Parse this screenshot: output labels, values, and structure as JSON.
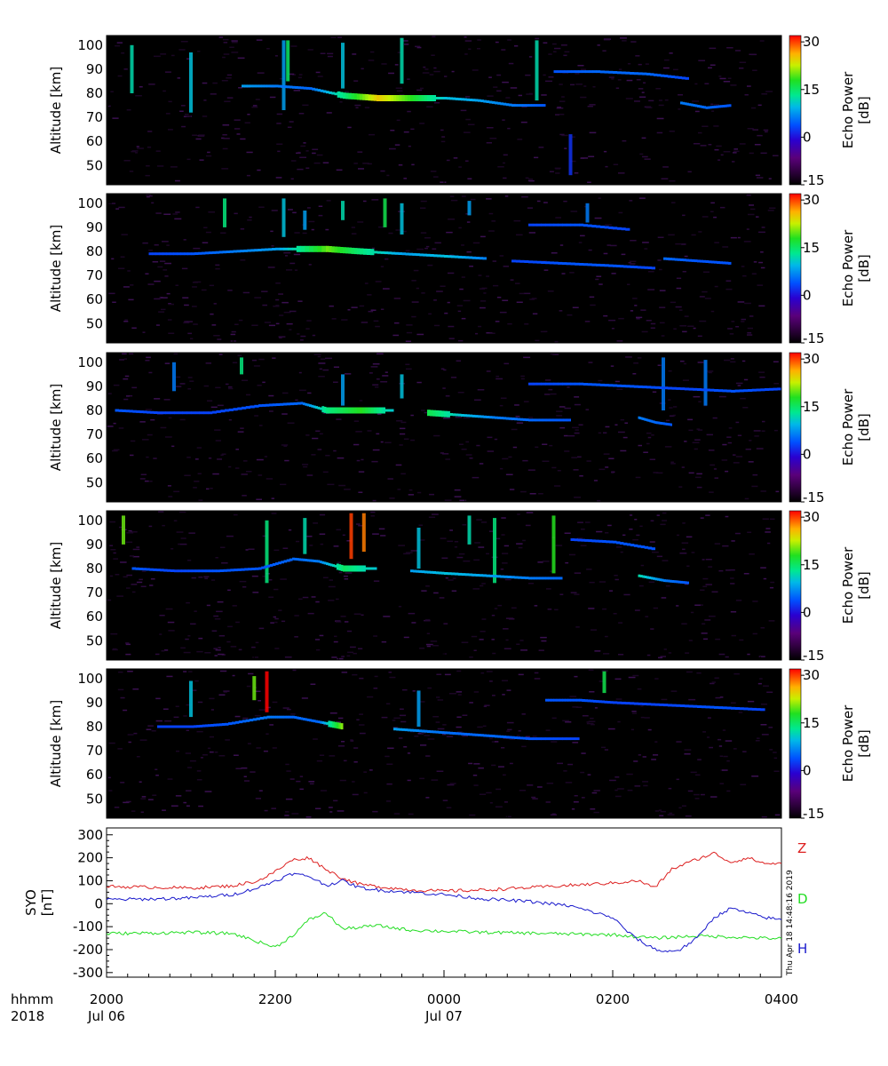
{
  "figure": {
    "timestamp": "Thu Apr 18 14:48:16 2019"
  },
  "colors": {
    "background": "#000000",
    "z_color": "#dd2020",
    "d_color": "#22dd22",
    "h_color": "#1a1acc"
  },
  "echo_panels": {
    "ylabel": "Altitude [km]",
    "yticks": [
      50,
      60,
      70,
      80,
      90,
      100
    ],
    "ylim": [
      42,
      104
    ],
    "colorbar_label_line1": "Echo Power",
    "colorbar_label_line2": "[dB]",
    "colorbar_ticks": [
      -15,
      0,
      15,
      30
    ],
    "colorbar_range": [
      -15,
      32
    ],
    "panel_count": 5
  },
  "mag_panel": {
    "ylabel_line1": "SYO",
    "ylabel_line2": "[nT]",
    "yticks": [
      -300,
      -200,
      -100,
      0,
      100,
      200,
      300
    ],
    "ylim": [
      -320,
      330
    ],
    "legend": [
      "Z",
      "D",
      "H"
    ]
  },
  "xaxis": {
    "hhmm_label": "hhmm",
    "year_label": "2018",
    "ticks": [
      {
        "label": "2000",
        "date": "Jul 06"
      },
      {
        "label": "2200",
        "date": ""
      },
      {
        "label": "0000",
        "date": "Jul 07"
      },
      {
        "label": "0200",
        "date": ""
      },
      {
        "label": "0400",
        "date": ""
      }
    ]
  },
  "chart_data": [
    {
      "type": "heatmap",
      "panel": 1,
      "xlabel": "",
      "ylabel": "Altitude [km]",
      "x_range_hours": [
        20,
        28
      ],
      "ylim": [
        42,
        104
      ],
      "colorbar": "Echo Power [dB]",
      "zlim": [
        -15,
        32
      ],
      "echo_layers": [
        {
          "t": [
            21.6,
            22.0,
            22.4,
            22.8,
            23.2,
            23.6,
            24.0,
            24.4,
            24.8,
            25.2
          ],
          "alt": [
            83,
            83,
            82,
            79,
            78,
            78,
            78,
            77,
            75,
            75
          ],
          "db": [
            8,
            6,
            5,
            14,
            25,
            18,
            10,
            8,
            6,
            4
          ]
        },
        {
          "t": [
            25.3,
            25.8,
            26.4,
            26.9
          ],
          "alt": [
            89,
            89,
            88,
            86
          ],
          "db": [
            4,
            5,
            5,
            3
          ]
        },
        {
          "t": [
            26.8,
            27.1,
            27.4
          ],
          "alt": [
            76,
            74,
            75
          ],
          "db": [
            6,
            5,
            4
          ]
        }
      ],
      "columns": [
        {
          "t": 20.3,
          "top": 100,
          "bottom": 80,
          "db": 12
        },
        {
          "t": 21.0,
          "top": 97,
          "bottom": 72,
          "db": 10
        },
        {
          "t": 22.1,
          "top": 102,
          "bottom": 73,
          "db": 8
        },
        {
          "t": 22.15,
          "top": 102,
          "bottom": 85,
          "db": 15
        },
        {
          "t": 22.8,
          "top": 101,
          "bottom": 82,
          "db": 10
        },
        {
          "t": 23.5,
          "top": 103,
          "bottom": 84,
          "db": 12
        },
        {
          "t": 25.1,
          "top": 102,
          "bottom": 77,
          "db": 12
        },
        {
          "t": 25.5,
          "top": 63,
          "bottom": 46,
          "db": 2
        }
      ]
    },
    {
      "type": "heatmap",
      "panel": 2,
      "xlabel": "",
      "ylabel": "Altitude [km]",
      "x_range_hours": [
        20,
        28
      ],
      "ylim": [
        42,
        104
      ],
      "colorbar": "Echo Power [dB]",
      "zlim": [
        -15,
        32
      ],
      "echo_layers": [
        {
          "t": [
            20.5,
            21.0,
            21.5,
            22.0,
            22.6,
            23.0,
            23.5,
            24.0,
            24.5
          ],
          "alt": [
            79,
            79,
            80,
            81,
            81,
            80,
            79,
            78,
            77
          ],
          "db": [
            3,
            4,
            6,
            8,
            20,
            14,
            8,
            10,
            6
          ]
        },
        {
          "t": [
            24.8,
            25.4,
            26.0,
            26.5
          ],
          "alt": [
            76,
            75,
            74,
            73
          ],
          "db": [
            3,
            4,
            4,
            3
          ]
        },
        {
          "t": [
            25.0,
            25.6,
            26.2
          ],
          "alt": [
            91,
            91,
            89
          ],
          "db": [
            3,
            4,
            3
          ]
        },
        {
          "t": [
            26.6,
            27.0,
            27.4
          ],
          "alt": [
            77,
            76,
            75
          ],
          "db": [
            5,
            4,
            4
          ]
        }
      ],
      "columns": [
        {
          "t": 21.4,
          "top": 102,
          "bottom": 90,
          "db": 14
        },
        {
          "t": 22.1,
          "top": 102,
          "bottom": 86,
          "db": 10
        },
        {
          "t": 22.35,
          "top": 97,
          "bottom": 89,
          "db": 8
        },
        {
          "t": 22.8,
          "top": 101,
          "bottom": 93,
          "db": 12
        },
        {
          "t": 23.3,
          "top": 102,
          "bottom": 90,
          "db": 16
        },
        {
          "t": 23.5,
          "top": 100,
          "bottom": 87,
          "db": 10
        },
        {
          "t": 24.3,
          "top": 101,
          "bottom": 95,
          "db": 8
        },
        {
          "t": 25.7,
          "top": 100,
          "bottom": 92,
          "db": 6
        }
      ]
    },
    {
      "type": "heatmap",
      "panel": 3,
      "xlabel": "",
      "ylabel": "Altitude [km]",
      "x_range_hours": [
        20,
        28
      ],
      "ylim": [
        42,
        104
      ],
      "colorbar": "Echo Power [dB]",
      "zlim": [
        -15,
        32
      ],
      "echo_layers": [
        {
          "t": [
            20.1,
            20.6,
            21.2,
            21.8,
            22.3,
            22.6,
            23.0,
            23.4
          ],
          "alt": [
            80,
            79,
            79,
            82,
            83,
            80,
            80,
            80
          ],
          "db": [
            4,
            3,
            3,
            4,
            5,
            14,
            18,
            10
          ]
        },
        {
          "t": [
            23.8,
            24.2,
            24.6,
            25.0,
            25.5
          ],
          "alt": [
            79,
            78,
            77,
            76,
            76
          ],
          "db": [
            16,
            10,
            6,
            5,
            4
          ]
        },
        {
          "t": [
            25.0,
            25.6,
            26.2,
            26.8,
            27.4,
            28.0
          ],
          "alt": [
            91,
            91,
            90,
            89,
            88,
            89
          ],
          "db": [
            3,
            4,
            4,
            3,
            4,
            3
          ]
        },
        {
          "t": [
            26.3,
            26.5,
            26.7
          ],
          "alt": [
            77,
            75,
            74
          ],
          "db": [
            6,
            5,
            4
          ]
        }
      ],
      "columns": [
        {
          "t": 20.8,
          "top": 100,
          "bottom": 88,
          "db": 6
        },
        {
          "t": 21.6,
          "top": 102,
          "bottom": 95,
          "db": 14
        },
        {
          "t": 22.8,
          "top": 95,
          "bottom": 82,
          "db": 8
        },
        {
          "t": 23.5,
          "top": 95,
          "bottom": 85,
          "db": 10
        },
        {
          "t": 26.6,
          "top": 102,
          "bottom": 80,
          "db": 6
        },
        {
          "t": 27.1,
          "top": 101,
          "bottom": 82,
          "db": 6
        }
      ]
    },
    {
      "type": "heatmap",
      "panel": 4,
      "xlabel": "",
      "ylabel": "Altitude [km]",
      "x_range_hours": [
        20,
        28
      ],
      "ylim": [
        42,
        104
      ],
      "colorbar": "Echo Power [dB]",
      "zlim": [
        -15,
        32
      ],
      "echo_layers": [
        {
          "t": [
            20.3,
            20.8,
            21.3,
            21.8,
            22.2,
            22.5,
            22.8,
            23.2
          ],
          "alt": [
            80,
            79,
            79,
            80,
            84,
            83,
            80,
            80
          ],
          "db": [
            4,
            3,
            4,
            4,
            5,
            6,
            15,
            10
          ]
        },
        {
          "t": [
            23.6,
            24.0,
            24.5,
            25.0,
            25.4
          ],
          "alt": [
            79,
            78,
            77,
            76,
            76
          ],
          "db": [
            8,
            10,
            8,
            6,
            5
          ]
        },
        {
          "t": [
            25.5,
            26.0,
            26.5
          ],
          "alt": [
            92,
            91,
            88
          ],
          "db": [
            3,
            4,
            4
          ]
        },
        {
          "t": [
            26.3,
            26.6,
            26.9
          ],
          "alt": [
            77,
            75,
            74
          ],
          "db": [
            12,
            6,
            4
          ]
        }
      ],
      "columns": [
        {
          "t": 20.2,
          "top": 102,
          "bottom": 90,
          "db": 20
        },
        {
          "t": 21.9,
          "top": 100,
          "bottom": 74,
          "db": 14
        },
        {
          "t": 22.35,
          "top": 101,
          "bottom": 86,
          "db": 12
        },
        {
          "t": 22.9,
          "top": 103,
          "bottom": 84,
          "db": 30
        },
        {
          "t": 23.05,
          "top": 103,
          "bottom": 87,
          "db": 28
        },
        {
          "t": 23.7,
          "top": 97,
          "bottom": 80,
          "db": 10
        },
        {
          "t": 24.3,
          "top": 102,
          "bottom": 90,
          "db": 12
        },
        {
          "t": 24.6,
          "top": 101,
          "bottom": 74,
          "db": 14
        },
        {
          "t": 25.3,
          "top": 102,
          "bottom": 78,
          "db": 18
        }
      ]
    },
    {
      "type": "heatmap",
      "panel": 5,
      "xlabel": "",
      "ylabel": "Altitude [km]",
      "x_range_hours": [
        20,
        28
      ],
      "ylim": [
        42,
        104
      ],
      "colorbar": "Echo Power [dB]",
      "zlim": [
        -15,
        32
      ],
      "echo_layers": [
        {
          "t": [
            20.6,
            21.0,
            21.4,
            21.9,
            22.2,
            22.5,
            22.8
          ],
          "alt": [
            80,
            80,
            81,
            84,
            84,
            82,
            80
          ],
          "db": [
            3,
            3,
            4,
            6,
            5,
            5,
            22
          ]
        },
        {
          "t": [
            23.4,
            23.8,
            24.2,
            24.6,
            25.0,
            25.6
          ],
          "alt": [
            79,
            78,
            77,
            76,
            75,
            75
          ],
          "db": [
            8,
            6,
            5,
            5,
            4,
            3
          ]
        },
        {
          "t": [
            25.2,
            25.6,
            26.0,
            26.6,
            27.2,
            27.8
          ],
          "alt": [
            91,
            91,
            90,
            89,
            88,
            87
          ],
          "db": [
            4,
            4,
            3,
            3,
            4,
            3
          ]
        }
      ],
      "columns": [
        {
          "t": 21.9,
          "top": 103,
          "bottom": 86,
          "db": 32
        },
        {
          "t": 21.75,
          "top": 101,
          "bottom": 91,
          "db": 20
        },
        {
          "t": 21.0,
          "top": 99,
          "bottom": 84,
          "db": 10
        },
        {
          "t": 23.7,
          "top": 95,
          "bottom": 80,
          "db": 8
        },
        {
          "t": 25.9,
          "top": 103,
          "bottom": 94,
          "db": 16
        }
      ]
    },
    {
      "type": "line",
      "ylabel": "SYO [nT]",
      "xlabel": "hhmm",
      "x_range_hours": [
        20,
        28
      ],
      "ylim": [
        -320,
        330
      ],
      "series": [
        {
          "name": "Z",
          "t": [
            20.0,
            20.5,
            21.0,
            21.5,
            21.8,
            22.0,
            22.2,
            22.4,
            22.6,
            22.8,
            23.0,
            23.2,
            23.6,
            24.0,
            24.5,
            25.0,
            25.5,
            26.0,
            26.3,
            26.5,
            26.7,
            26.9,
            27.2,
            27.4,
            27.6,
            27.8,
            28.0
          ],
          "values": [
            75,
            72,
            68,
            78,
            100,
            140,
            190,
            200,
            150,
            110,
            85,
            75,
            60,
            55,
            60,
            70,
            80,
            90,
            100,
            70,
            150,
            180,
            220,
            180,
            200,
            175,
            175
          ]
        },
        {
          "name": "D",
          "t": [
            20.0,
            20.5,
            21.0,
            21.5,
            22.0,
            22.2,
            22.4,
            22.6,
            22.8,
            23.2,
            23.6,
            24.0,
            24.5,
            25.0,
            25.5,
            26.0,
            26.5,
            27.0,
            27.4,
            27.8,
            28.0
          ],
          "values": [
            -130,
            -128,
            -125,
            -130,
            -190,
            -140,
            -70,
            -40,
            -110,
            -95,
            -115,
            -120,
            -125,
            -128,
            -132,
            -135,
            -150,
            -140,
            -145,
            -150,
            -152
          ]
        },
        {
          "name": "H",
          "t": [
            20.0,
            20.5,
            21.0,
            21.5,
            21.8,
            22.0,
            22.2,
            22.4,
            22.6,
            22.8,
            23.0,
            23.2,
            23.6,
            24.0,
            24.5,
            25.0,
            25.5,
            26.0,
            26.2,
            26.4,
            26.6,
            26.8,
            27.0,
            27.2,
            27.4,
            27.6,
            27.8,
            28.0
          ],
          "values": [
            18,
            20,
            25,
            40,
            70,
            100,
            130,
            120,
            80,
            100,
            70,
            60,
            50,
            40,
            20,
            10,
            -10,
            -60,
            -130,
            -180,
            -210,
            -200,
            -150,
            -60,
            -20,
            -40,
            -60,
            -70
          ]
        }
      ]
    }
  ]
}
